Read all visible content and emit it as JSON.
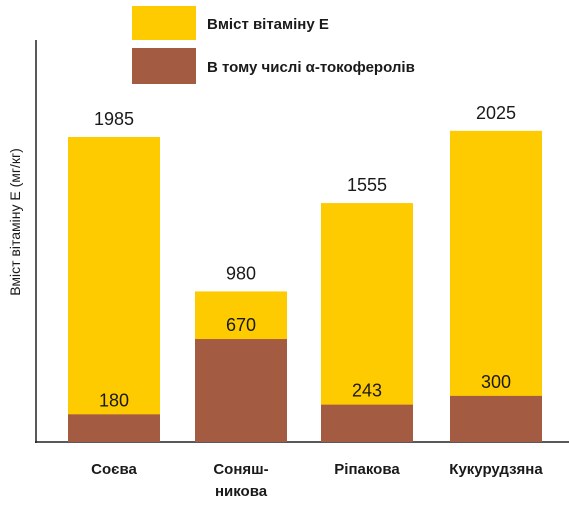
{
  "chart_data": {
    "type": "bar",
    "categories": [
      [
        "Соєва"
      ],
      [
        "Соняш-",
        "никова"
      ],
      [
        "Ріпакова"
      ],
      [
        "Кукурудзяна"
      ]
    ],
    "series": [
      {
        "name": "Вміст вітаміну Е",
        "color": "#FECA00",
        "values": [
          1985,
          980,
          1555,
          2025
        ]
      },
      {
        "name": "В тому числі α-токоферолів",
        "color": "#A35B42",
        "values": [
          180,
          670,
          243,
          300
        ]
      }
    ],
    "value_labels": {
      "total": [
        "1985",
        "980",
        "1555",
        "2025"
      ],
      "alpha": [
        "180",
        "670",
        "243",
        "300"
      ]
    },
    "title": "",
    "xlabel": "",
    "ylabel": "Вміст вітаміну Е (мг/кг)",
    "ylim": [
      0,
      2600
    ],
    "grid": false,
    "legend_position": "top"
  }
}
